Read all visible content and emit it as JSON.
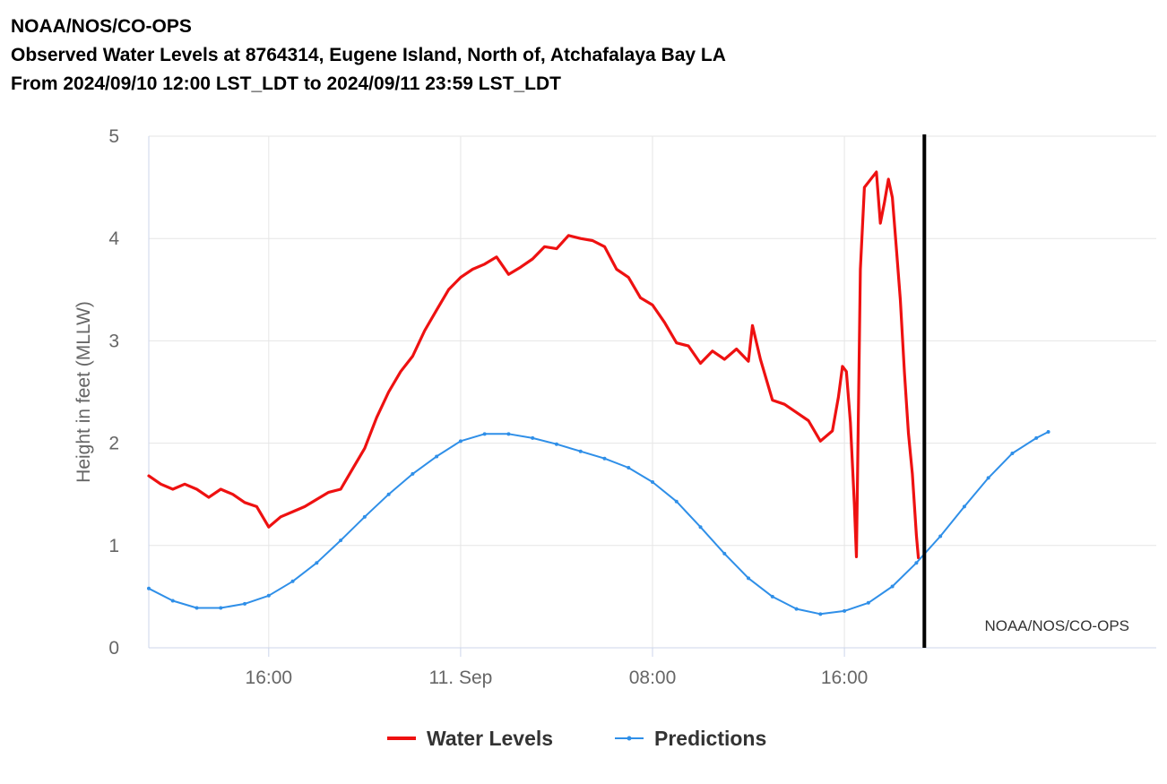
{
  "header": {
    "line1": "NOAA/NOS/CO-OPS",
    "line2": "Observed Water Levels at 8764314, Eugene Island, North of, Atchafalaya Bay LA",
    "line3": "From 2024/09/10 12:00 LST_LDT to 2024/09/11 23:59 LST_LDT"
  },
  "chart_data": {
    "type": "line",
    "ylabel": "Height in feet (MLLW)",
    "xlabel": "",
    "ylim": [
      0,
      5
    ],
    "yticks": [
      0,
      1,
      2,
      3,
      4,
      5
    ],
    "xlim": [
      "2024-09-10 11:00",
      "2024-09-12 05:00"
    ],
    "xticks": [
      {
        "label": "16:00",
        "time": "2024-09-10 16:00"
      },
      {
        "label": "11. Sep",
        "time": "2024-09-11 00:00"
      },
      {
        "label": "08:00",
        "time": "2024-09-11 08:00"
      },
      {
        "label": "16:00",
        "time": "2024-09-11 16:00"
      }
    ],
    "grid": true,
    "legend_position": "bottom-center",
    "credit": "NOAA/NOS/CO-OPS",
    "current_time_marker": "2024-09-11 19:20",
    "colors": {
      "water_levels": "#ee1111",
      "predictions": "#2f8fe8",
      "marker": "#000000"
    },
    "series": [
      {
        "name": "Water Levels",
        "color": "#ee1111",
        "points": [
          [
            "2024-09-10 11:00",
            1.68
          ],
          [
            "2024-09-10 11:30",
            1.6
          ],
          [
            "2024-09-10 12:00",
            1.55
          ],
          [
            "2024-09-10 12:30",
            1.6
          ],
          [
            "2024-09-10 13:00",
            1.55
          ],
          [
            "2024-09-10 13:30",
            1.47
          ],
          [
            "2024-09-10 14:00",
            1.55
          ],
          [
            "2024-09-10 14:30",
            1.5
          ],
          [
            "2024-09-10 15:00",
            1.42
          ],
          [
            "2024-09-10 15:30",
            1.38
          ],
          [
            "2024-09-10 16:00",
            1.18
          ],
          [
            "2024-09-10 16:30",
            1.28
          ],
          [
            "2024-09-10 17:00",
            1.33
          ],
          [
            "2024-09-10 17:30",
            1.38
          ],
          [
            "2024-09-10 18:00",
            1.45
          ],
          [
            "2024-09-10 18:30",
            1.52
          ],
          [
            "2024-09-10 19:00",
            1.55
          ],
          [
            "2024-09-10 19:30",
            1.75
          ],
          [
            "2024-09-10 20:00",
            1.95
          ],
          [
            "2024-09-10 20:30",
            2.25
          ],
          [
            "2024-09-10 21:00",
            2.5
          ],
          [
            "2024-09-10 21:30",
            2.7
          ],
          [
            "2024-09-10 22:00",
            2.85
          ],
          [
            "2024-09-10 22:30",
            3.1
          ],
          [
            "2024-09-10 23:00",
            3.3
          ],
          [
            "2024-09-10 23:30",
            3.5
          ],
          [
            "2024-09-11 00:00",
            3.62
          ],
          [
            "2024-09-11 00:30",
            3.7
          ],
          [
            "2024-09-11 01:00",
            3.75
          ],
          [
            "2024-09-11 01:30",
            3.82
          ],
          [
            "2024-09-11 02:00",
            3.65
          ],
          [
            "2024-09-11 02:30",
            3.72
          ],
          [
            "2024-09-11 03:00",
            3.8
          ],
          [
            "2024-09-11 03:30",
            3.92
          ],
          [
            "2024-09-11 04:00",
            3.9
          ],
          [
            "2024-09-11 04:30",
            4.03
          ],
          [
            "2024-09-11 05:00",
            4.0
          ],
          [
            "2024-09-11 05:30",
            3.98
          ],
          [
            "2024-09-11 06:00",
            3.92
          ],
          [
            "2024-09-11 06:30",
            3.7
          ],
          [
            "2024-09-11 07:00",
            3.62
          ],
          [
            "2024-09-11 07:30",
            3.42
          ],
          [
            "2024-09-11 08:00",
            3.35
          ],
          [
            "2024-09-11 08:30",
            3.18
          ],
          [
            "2024-09-11 09:00",
            2.98
          ],
          [
            "2024-09-11 09:30",
            2.95
          ],
          [
            "2024-09-11 10:00",
            2.78
          ],
          [
            "2024-09-11 10:30",
            2.9
          ],
          [
            "2024-09-11 11:00",
            2.82
          ],
          [
            "2024-09-11 11:30",
            2.92
          ],
          [
            "2024-09-11 12:00",
            2.8
          ],
          [
            "2024-09-11 12:10",
            3.15
          ],
          [
            "2024-09-11 12:30",
            2.82
          ],
          [
            "2024-09-11 13:00",
            2.42
          ],
          [
            "2024-09-11 13:30",
            2.38
          ],
          [
            "2024-09-11 14:00",
            2.3
          ],
          [
            "2024-09-11 14:30",
            2.22
          ],
          [
            "2024-09-11 15:00",
            2.02
          ],
          [
            "2024-09-11 15:30",
            2.12
          ],
          [
            "2024-09-11 15:45",
            2.45
          ],
          [
            "2024-09-11 15:55",
            2.75
          ],
          [
            "2024-09-11 16:05",
            2.7
          ],
          [
            "2024-09-11 16:15",
            2.2
          ],
          [
            "2024-09-11 16:25",
            1.4
          ],
          [
            "2024-09-11 16:30",
            0.89
          ],
          [
            "2024-09-11 16:40",
            3.7
          ],
          [
            "2024-09-11 16:50",
            4.5
          ],
          [
            "2024-09-11 17:10",
            4.6
          ],
          [
            "2024-09-11 17:20",
            4.65
          ],
          [
            "2024-09-11 17:30",
            4.15
          ],
          [
            "2024-09-11 17:40",
            4.35
          ],
          [
            "2024-09-11 17:50",
            4.58
          ],
          [
            "2024-09-11 18:00",
            4.4
          ],
          [
            "2024-09-11 18:10",
            3.9
          ],
          [
            "2024-09-11 18:20",
            3.4
          ],
          [
            "2024-09-11 18:30",
            2.7
          ],
          [
            "2024-09-11 18:40",
            2.1
          ],
          [
            "2024-09-11 18:50",
            1.7
          ],
          [
            "2024-09-11 19:00",
            1.1
          ],
          [
            "2024-09-11 19:05",
            0.88
          ]
        ]
      },
      {
        "name": "Predictions",
        "color": "#2f8fe8",
        "points": [
          [
            "2024-09-10 11:00",
            0.58
          ],
          [
            "2024-09-10 12:00",
            0.46
          ],
          [
            "2024-09-10 13:00",
            0.39
          ],
          [
            "2024-09-10 14:00",
            0.39
          ],
          [
            "2024-09-10 15:00",
            0.43
          ],
          [
            "2024-09-10 16:00",
            0.51
          ],
          [
            "2024-09-10 17:00",
            0.65
          ],
          [
            "2024-09-10 18:00",
            0.83
          ],
          [
            "2024-09-10 19:00",
            1.05
          ],
          [
            "2024-09-10 20:00",
            1.28
          ],
          [
            "2024-09-10 21:00",
            1.5
          ],
          [
            "2024-09-10 22:00",
            1.7
          ],
          [
            "2024-09-10 23:00",
            1.87
          ],
          [
            "2024-09-11 00:00",
            2.02
          ],
          [
            "2024-09-11 01:00",
            2.09
          ],
          [
            "2024-09-11 02:00",
            2.09
          ],
          [
            "2024-09-11 03:00",
            2.05
          ],
          [
            "2024-09-11 04:00",
            1.99
          ],
          [
            "2024-09-11 05:00",
            1.92
          ],
          [
            "2024-09-11 06:00",
            1.85
          ],
          [
            "2024-09-11 07:00",
            1.76
          ],
          [
            "2024-09-11 08:00",
            1.62
          ],
          [
            "2024-09-11 09:00",
            1.43
          ],
          [
            "2024-09-11 10:00",
            1.18
          ],
          [
            "2024-09-11 11:00",
            0.92
          ],
          [
            "2024-09-11 12:00",
            0.68
          ],
          [
            "2024-09-11 13:00",
            0.5
          ],
          [
            "2024-09-11 14:00",
            0.38
          ],
          [
            "2024-09-11 15:00",
            0.33
          ],
          [
            "2024-09-11 16:00",
            0.36
          ],
          [
            "2024-09-11 17:00",
            0.44
          ],
          [
            "2024-09-11 18:00",
            0.6
          ],
          [
            "2024-09-11 19:00",
            0.83
          ],
          [
            "2024-09-11 20:00",
            1.09
          ],
          [
            "2024-09-11 21:00",
            1.38
          ],
          [
            "2024-09-11 22:00",
            1.66
          ],
          [
            "2024-09-11 23:00",
            1.9
          ],
          [
            "2024-09-12 00:00",
            2.05
          ],
          [
            "2024-09-12 00:30",
            2.11
          ]
        ]
      }
    ]
  }
}
